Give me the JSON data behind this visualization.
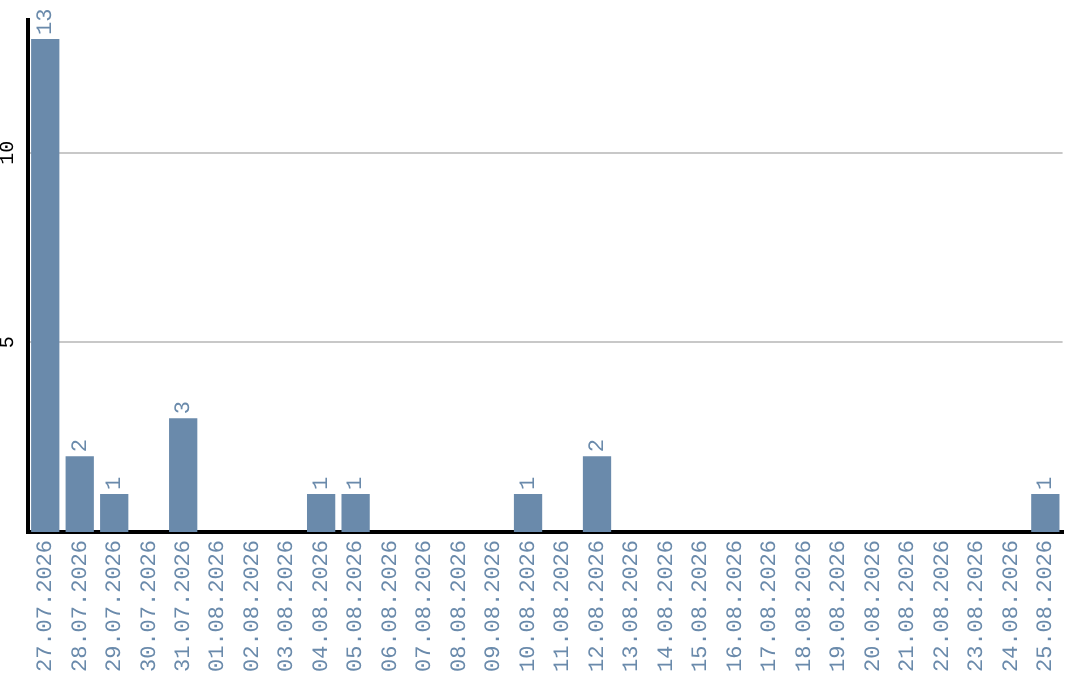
{
  "chart_data": {
    "type": "bar",
    "categories": [
      "27.07.2026",
      "28.07.2026",
      "29.07.2026",
      "30.07.2026",
      "31.07.2026",
      "01.08.2026",
      "02.08.2026",
      "03.08.2026",
      "04.08.2026",
      "05.08.2026",
      "06.08.2026",
      "07.08.2026",
      "08.08.2026",
      "09.08.2026",
      "10.08.2026",
      "11.08.2026",
      "12.08.2026",
      "13.08.2026",
      "14.08.2026",
      "15.08.2026",
      "16.08.2026",
      "17.08.2026",
      "18.08.2026",
      "19.08.2026",
      "20.08.2026",
      "21.08.2026",
      "22.08.2026",
      "23.08.2026",
      "24.08.2026",
      "25.08.2026"
    ],
    "values": [
      13,
      2,
      1,
      0,
      3,
      0,
      0,
      0,
      1,
      1,
      0,
      0,
      0,
      0,
      1,
      0,
      2,
      0,
      0,
      0,
      0,
      0,
      0,
      0,
      0,
      0,
      0,
      0,
      0,
      1
    ],
    "value_labels": [
      "13",
      "2",
      "1",
      null,
      "3",
      null,
      null,
      null,
      "1",
      "1",
      null,
      null,
      null,
      null,
      "1",
      null,
      "2",
      null,
      null,
      null,
      null,
      null,
      null,
      null,
      null,
      null,
      null,
      null,
      null,
      "1"
    ],
    "color": "#6a8aab",
    "ylim": [
      0,
      13.5
    ],
    "yticks": [
      5,
      10
    ],
    "grid": "y",
    "legend": false
  }
}
